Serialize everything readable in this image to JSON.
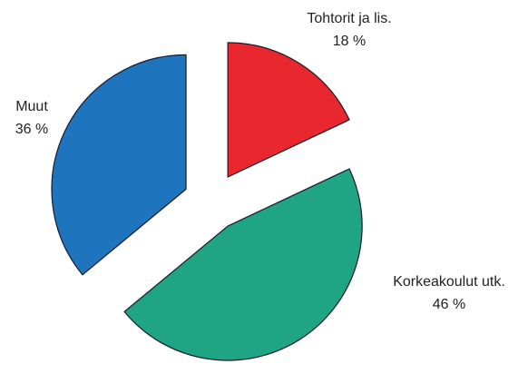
{
  "chart_data": {
    "type": "pie",
    "categories": [
      "Tohtorit ja lis.",
      "Korkeakoulut utk.",
      "Muut"
    ],
    "values": [
      18,
      46,
      36
    ],
    "value_labels": [
      "18 %",
      "46 %",
      "36 %"
    ],
    "colors": [
      "#e8282e",
      "#1fa584",
      "#1f75bd"
    ]
  }
}
